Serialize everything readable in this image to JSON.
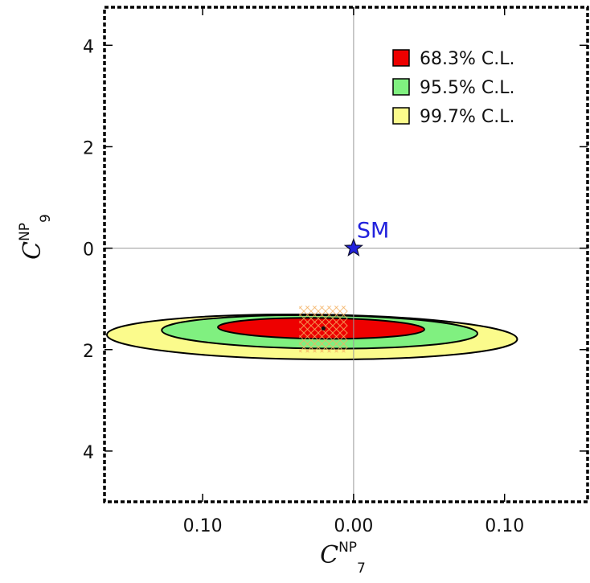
{
  "chart_data": {
    "type": "contour",
    "xlabel": {
      "base": "C",
      "sup": "NP",
      "sub": "7"
    },
    "ylabel": {
      "base": "C",
      "sup": "NP",
      "sub": "9"
    },
    "xlim": [
      -0.165,
      0.155
    ],
    "ylim": [
      -5.0,
      4.75
    ],
    "x_ticks": [
      {
        "value": -0.1,
        "label": "0.10"
      },
      {
        "value": 0.0,
        "label": "0.00"
      },
      {
        "value": 0.1,
        "label": "0.10"
      }
    ],
    "y_ticks": [
      {
        "value": 4,
        "label": "4"
      },
      {
        "value": 2,
        "label": "2"
      },
      {
        "value": 0,
        "label": "0"
      },
      {
        "value": -2,
        "label": "2"
      },
      {
        "value": -4,
        "label": "4"
      }
    ],
    "reference_lines": {
      "x": 0,
      "y": 0
    },
    "best_fit": {
      "x": -0.02,
      "y": -1.58
    },
    "regions": [
      {
        "name": "99.7% C.L.",
        "color": "#fbfb8c",
        "center": {
          "x": -0.0275,
          "y": -1.75
        },
        "semi_major": 0.1427,
        "semi_minor": 0.0484,
        "angle_deg": -17.76
      },
      {
        "name": "95.5% C.L.",
        "color": "#80f080",
        "center": {
          "x": -0.0225,
          "y": -1.65
        },
        "semi_major": 0.1098,
        "semi_minor": 0.036,
        "angle_deg": -17.76
      },
      {
        "name": "68.3% C.L.",
        "color": "#ee0000",
        "center": {
          "x": -0.0215,
          "y": -1.58
        },
        "semi_major": 0.0718,
        "semi_minor": 0.0225,
        "angle_deg": -17.76
      }
    ],
    "legend": {
      "position": "top-right",
      "entries": [
        {
          "label": "68.3% C.L.",
          "color": "#ee0000"
        },
        {
          "label": "95.5% C.L.",
          "color": "#80f080"
        },
        {
          "label": "99.7% C.L.",
          "color": "#fbfb8c"
        }
      ]
    },
    "annotations": [
      {
        "text": "SM",
        "x": 0.0,
        "y": 0.0,
        "marker": "star",
        "color": "#2222dd"
      }
    ]
  }
}
